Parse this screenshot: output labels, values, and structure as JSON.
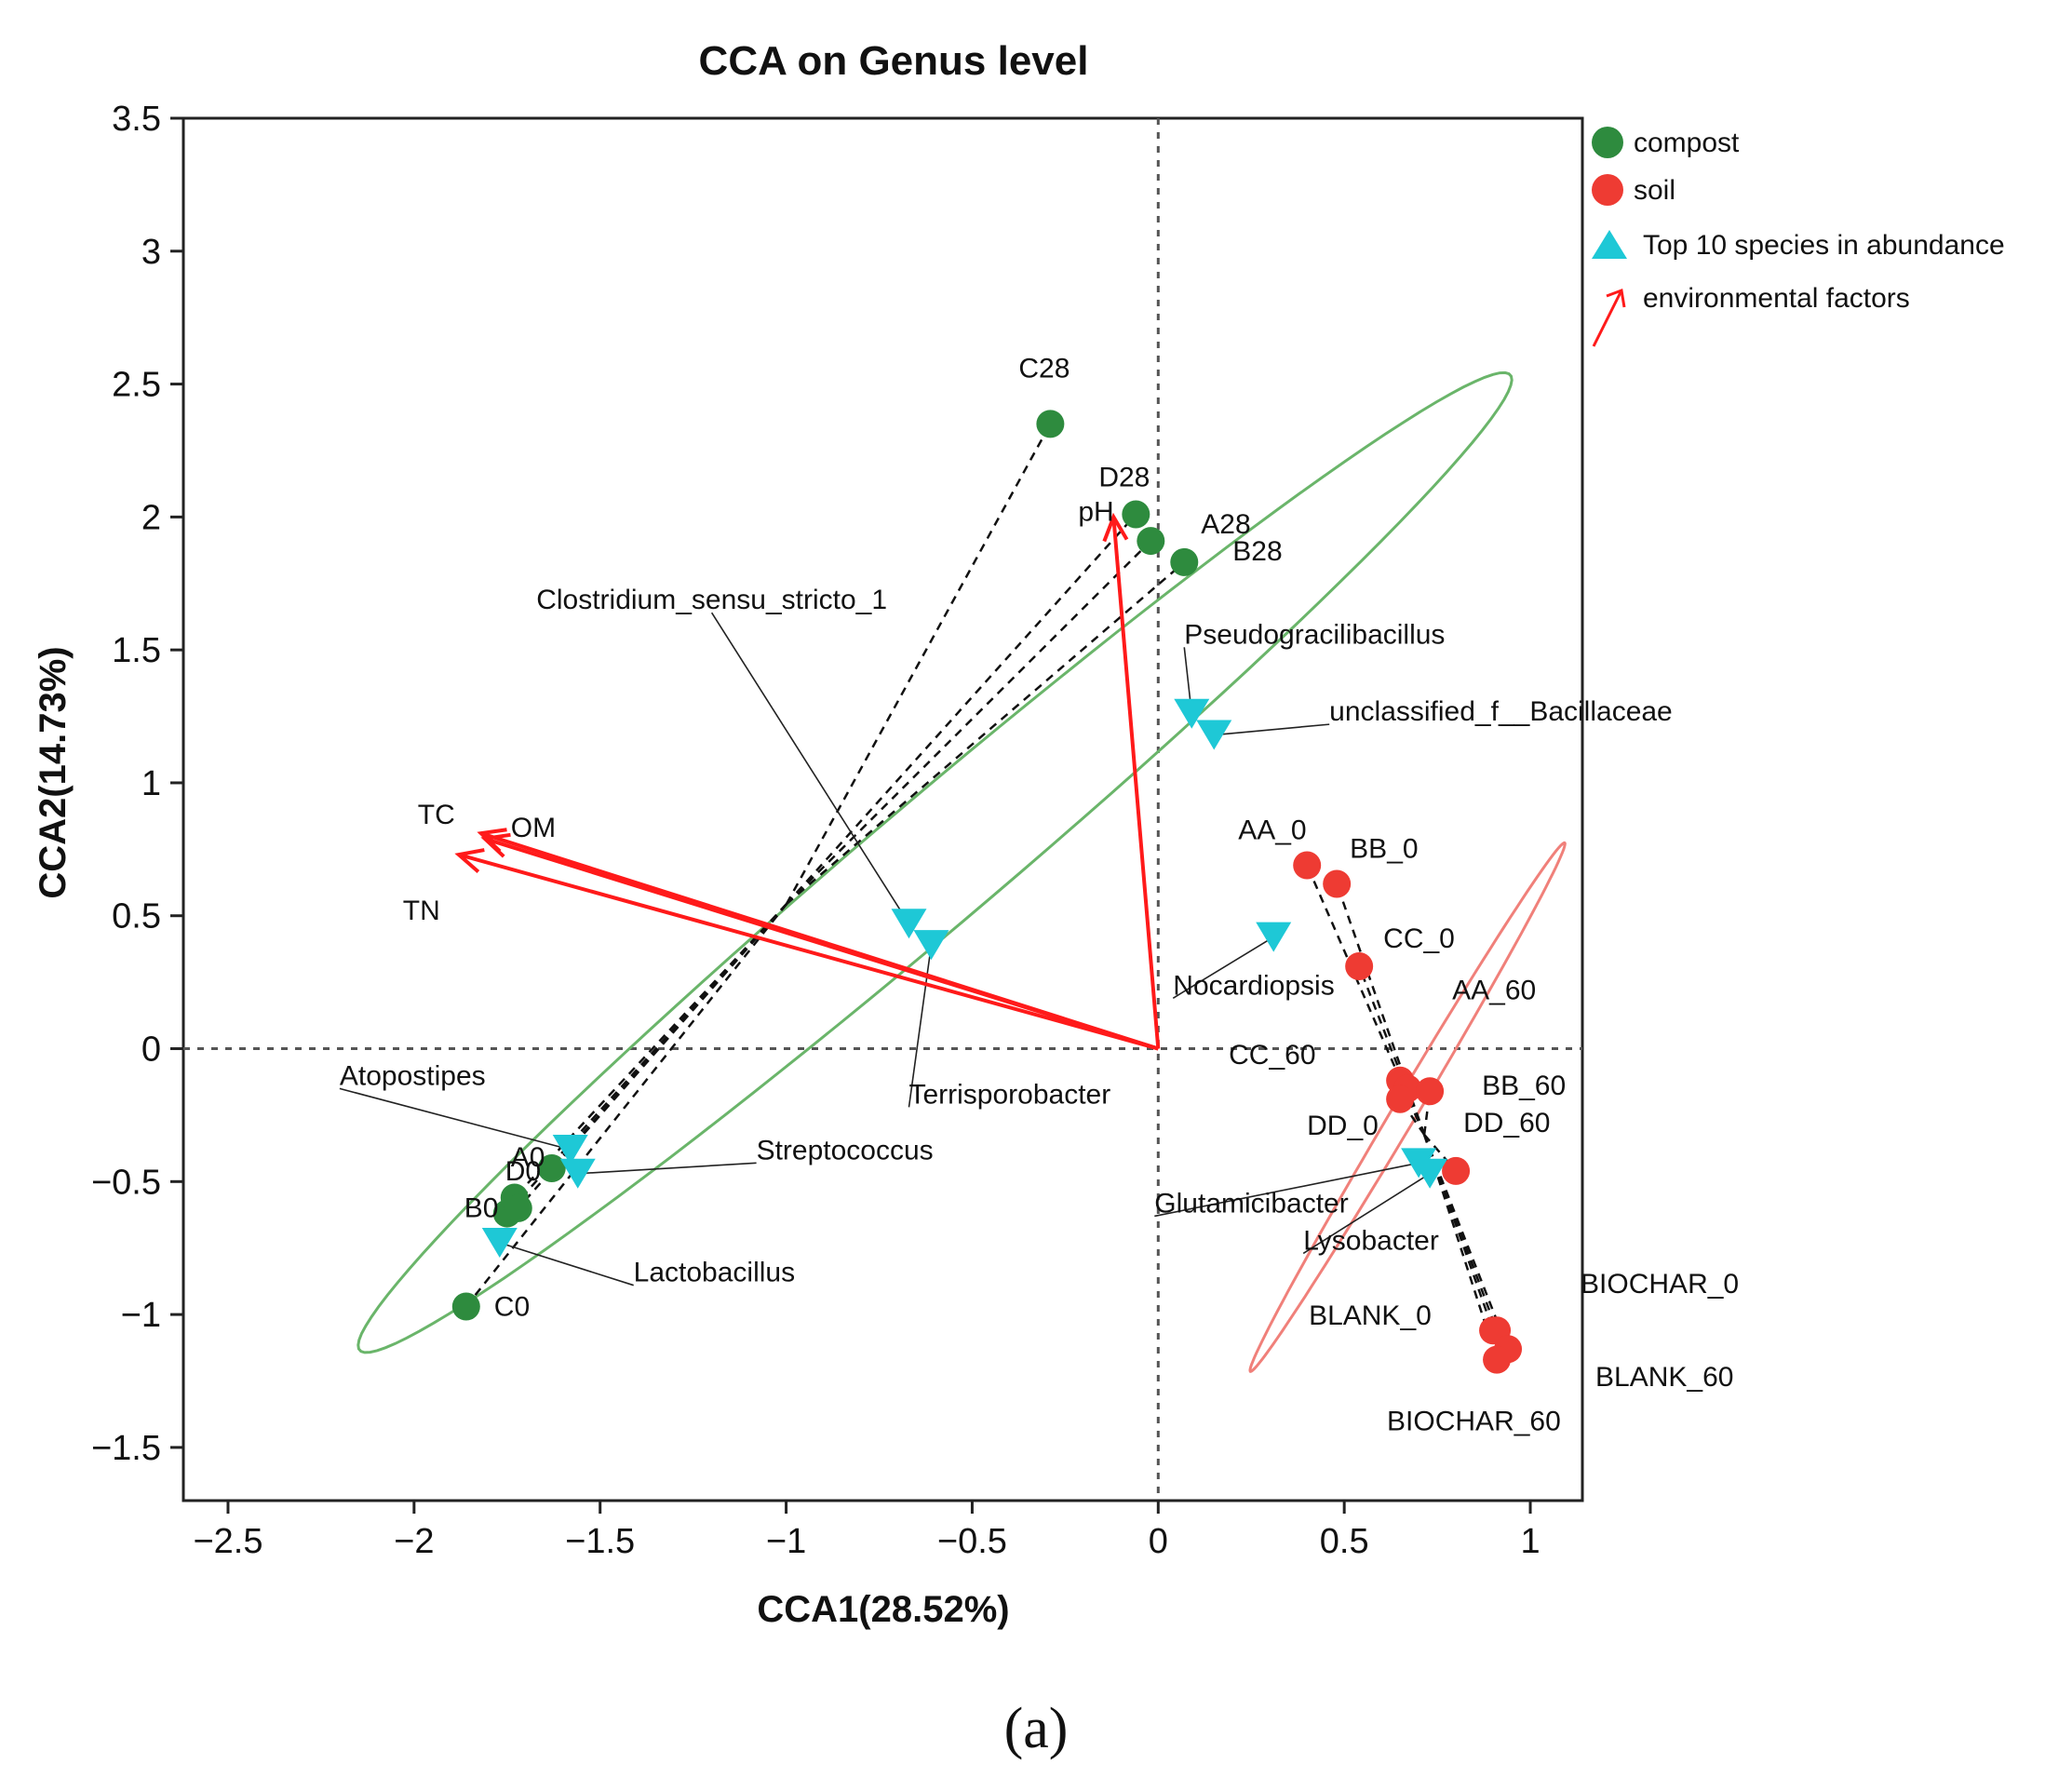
{
  "chart_data": {
    "type": "scatter",
    "title": "CCA on Genus level",
    "xlabel": "CCA1(28.52%)",
    "ylabel": "CCA2(14.73%)",
    "xlim": [
      -2.62,
      1.14
    ],
    "ylim": [
      -1.7,
      3.5
    ],
    "xticks": [
      -2.5,
      -2,
      -1.5,
      -1,
      -0.5,
      0,
      0.5,
      1
    ],
    "xtick_labels": [
      "−2.5",
      "−2",
      "−1.5",
      "−1",
      "−0.5",
      "0",
      "0.5",
      "1"
    ],
    "yticks": [
      -1.5,
      -1,
      -0.5,
      0,
      0.5,
      1,
      1.5,
      2,
      2.5,
      3,
      3.5
    ],
    "ytick_labels": [
      "−1.5",
      "−1",
      "−0.5",
      "0",
      "0.5",
      "1",
      "1.5",
      "2",
      "2.5",
      "3",
      "3.5"
    ],
    "caption": "(a)",
    "colors": {
      "compost": "#2e8b3e",
      "soil": "#ee3b33",
      "species": "#1ec8d6",
      "factors": "#ff1a1a",
      "ellipse_compost": "#6ab56a",
      "ellipse_soil": "#f0807a"
    },
    "legend": [
      {
        "key": "compost",
        "label": "compost"
      },
      {
        "key": "soil",
        "label": "soil"
      },
      {
        "key": "species",
        "label": "Top 10 species in abundance"
      },
      {
        "key": "factors",
        "label": "environmental factors"
      }
    ],
    "compost_samples": [
      {
        "name": "C28",
        "x": -0.29,
        "y": 2.35
      },
      {
        "name": "D28",
        "x": -0.06,
        "y": 2.01
      },
      {
        "name": "A28",
        "x": -0.02,
        "y": 1.91
      },
      {
        "name": "B28",
        "x": 0.07,
        "y": 1.83
      },
      {
        "name": "A0",
        "x": -1.63,
        "y": -0.45
      },
      {
        "name": "",
        "x": -1.73,
        "y": -0.56
      },
      {
        "name": "B0",
        "x": -1.75,
        "y": -0.62
      },
      {
        "name": "C0",
        "x": -1.86,
        "y": -0.97
      },
      {
        "name": "D0",
        "x": -1.72,
        "y": -0.6
      }
    ],
    "soil_samples": [
      {
        "name": "AA_0",
        "x": 0.4,
        "y": 0.69
      },
      {
        "name": "BB_0",
        "x": 0.48,
        "y": 0.62
      },
      {
        "name": "CC_0",
        "x": 0.54,
        "y": 0.31
      },
      {
        "name": "CC_60",
        "x": 0.65,
        "y": -0.12
      },
      {
        "name": "AA_60",
        "x": 0.67,
        "y": -0.15
      },
      {
        "name": "BB_60",
        "x": 0.73,
        "y": -0.16
      },
      {
        "name": "DD_0",
        "x": 0.65,
        "y": -0.19
      },
      {
        "name": "DD_60",
        "x": 0.8,
        "y": -0.46
      },
      {
        "name": "BIOCHAR_0",
        "x": 0.91,
        "y": -1.06
      },
      {
        "name": "BLANK_0",
        "x": 0.9,
        "y": -1.06
      },
      {
        "name": "BLANK_60",
        "x": 0.94,
        "y": -1.13
      },
      {
        "name": "BIOCHAR_60",
        "x": 0.91,
        "y": -1.17
      }
    ],
    "species": [
      {
        "name": "Pseudogracilibacillus",
        "x": 0.09,
        "y": 1.26,
        "lx": 0.07,
        "ly": 1.51,
        "anchor": "start"
      },
      {
        "name": "unclassified_f__Bacillaceae",
        "x": 0.15,
        "y": 1.18,
        "lx": 0.46,
        "ly": 1.22,
        "anchor": "start"
      },
      {
        "name": "Clostridium_sensu_stricto_1",
        "x": -0.67,
        "y": 0.47,
        "lx": -1.2,
        "ly": 1.64,
        "anchor": "middle"
      },
      {
        "name": "Terrisporobacter",
        "x": -0.61,
        "y": 0.39,
        "lx": -0.67,
        "ly": -0.22,
        "anchor": "start"
      },
      {
        "name": "Nocardiopsis",
        "x": 0.31,
        "y": 0.42,
        "lx": 0.04,
        "ly": 0.19,
        "anchor": "start"
      },
      {
        "name": "Atopostipes",
        "x": -1.58,
        "y": -0.38,
        "lx": -2.2,
        "ly": -0.15,
        "anchor": "start"
      },
      {
        "name": "Streptococcus",
        "x": -1.56,
        "y": -0.47,
        "lx": -1.08,
        "ly": -0.43,
        "anchor": "start"
      },
      {
        "name": "Lactobacillus",
        "x": -1.77,
        "y": -0.73,
        "lx": -1.41,
        "ly": -0.89,
        "anchor": "start"
      },
      {
        "name": "Glutamicibacter",
        "x": 0.7,
        "y": -0.43,
        "lx": -0.01,
        "ly": -0.63,
        "anchor": "start"
      },
      {
        "name": "Lysobacter",
        "x": 0.73,
        "y": -0.47,
        "lx": 0.39,
        "ly": -0.77,
        "anchor": "start"
      }
    ],
    "environmental_factors": [
      {
        "name": "pH",
        "x": -0.12,
        "y": 2.0
      },
      {
        "name": "TC",
        "x": -1.82,
        "y": 0.81
      },
      {
        "name": "OM",
        "x": -1.81,
        "y": 0.79
      },
      {
        "name": "TN",
        "x": -1.88,
        "y": 0.73
      }
    ],
    "ellipses": [
      {
        "group": "compost",
        "cx": -0.6,
        "cy": 0.7,
        "rx": 2.4,
        "ry": 0.2,
        "angle_deg": 50
      },
      {
        "group": "soil",
        "cx": 0.67,
        "cy": -0.22,
        "rx": 1.08,
        "ry": 0.035,
        "angle_deg": 67
      }
    ]
  }
}
